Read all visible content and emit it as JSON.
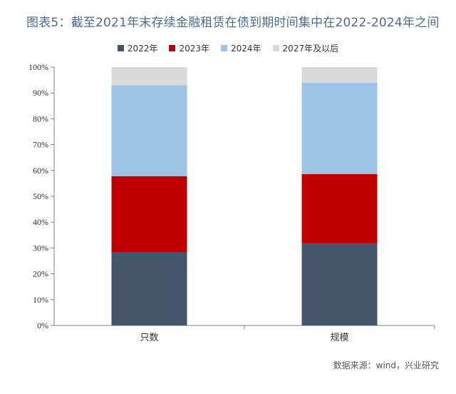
{
  "title": "图表5：截至2021年末存续金融租赁在债到期时间集中在2022-2024年之间",
  "source": "数据来源：wind，兴业研究",
  "colors": {
    "2022": "#44546a",
    "2023": "#c00000",
    "2024": "#9dc3e6",
    "2027": "#d9d9d9"
  },
  "chart_data": {
    "type": "bar",
    "stacked": true,
    "categories": [
      "只数",
      "规模"
    ],
    "series": [
      {
        "name": "2022年",
        "values": [
          28.3,
          31.8
        ],
        "color": "#44546a"
      },
      {
        "name": "2023年",
        "values": [
          29.5,
          26.8
        ],
        "color": "#c00000"
      },
      {
        "name": "2024年",
        "values": [
          35.2,
          35.3
        ],
        "color": "#9dc3e6"
      },
      {
        "name": "2027年及以后",
        "values": [
          7.0,
          6.1
        ],
        "color": "#d9d9d9"
      }
    ],
    "ylim": [
      0,
      100
    ],
    "yticks": [
      "0%",
      "10%",
      "20%",
      "30%",
      "40%",
      "50%",
      "60%",
      "70%",
      "80%",
      "90%",
      "100%"
    ],
    "legend_position": "top-center",
    "grid": false
  }
}
